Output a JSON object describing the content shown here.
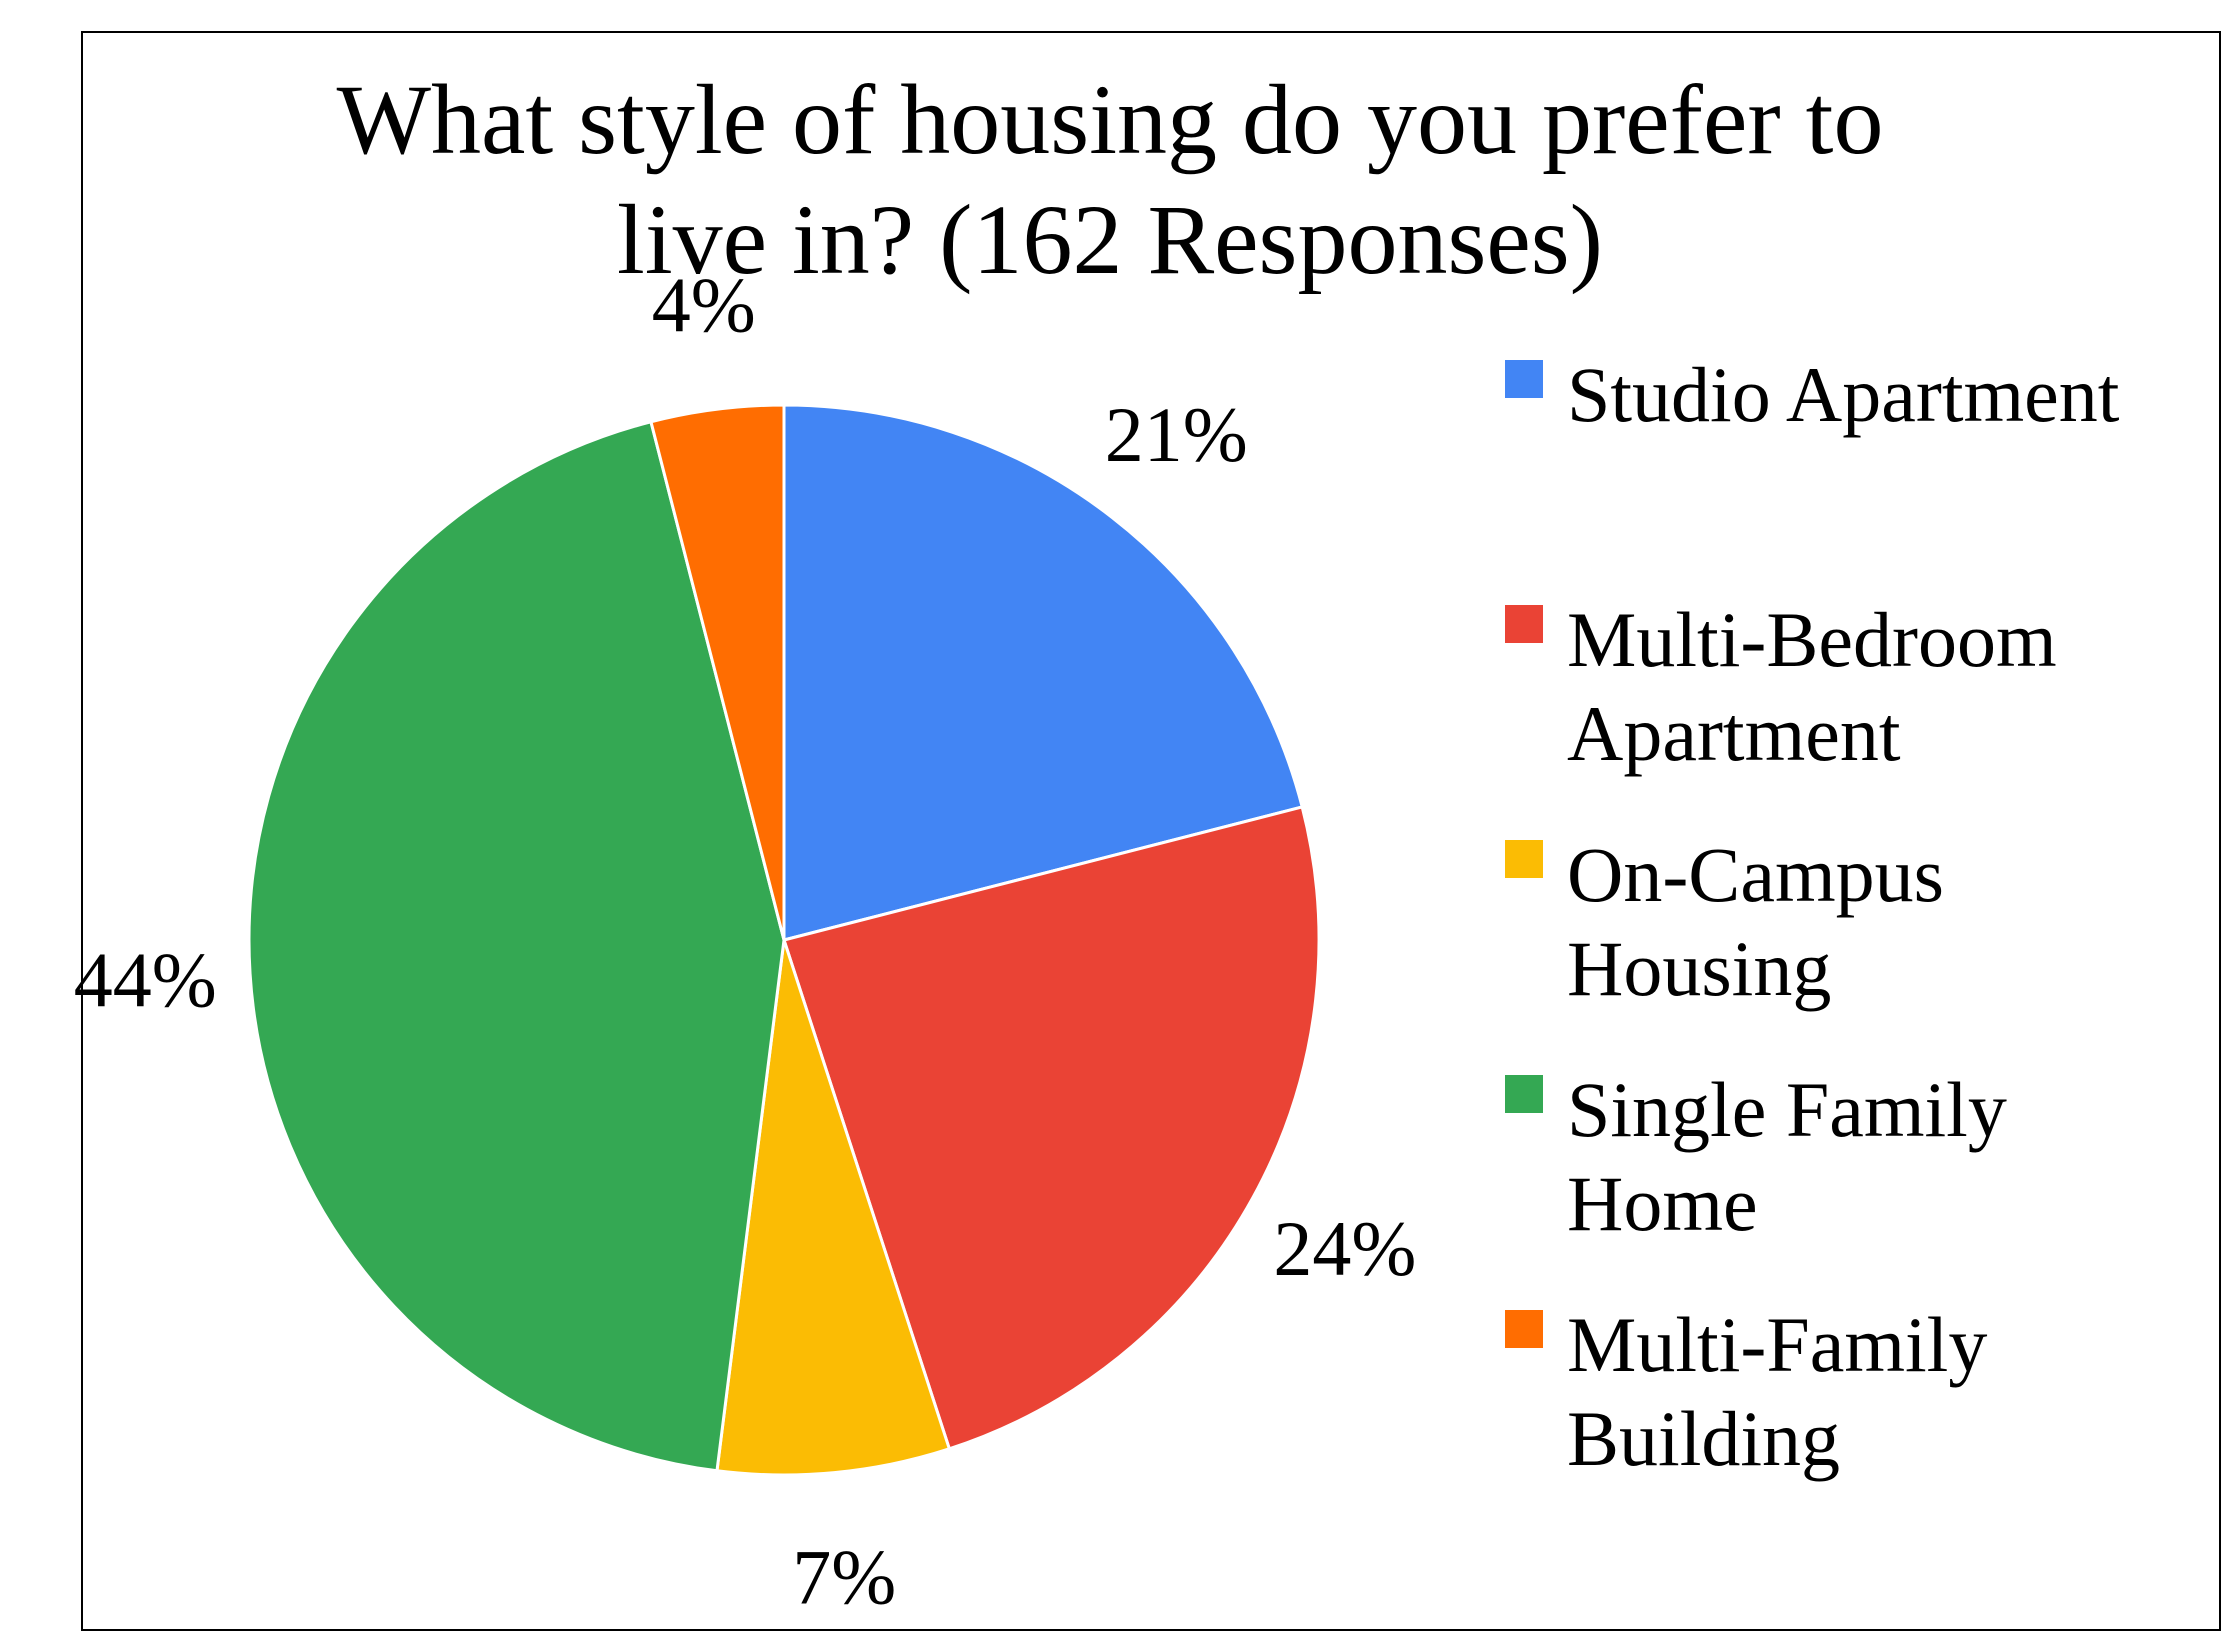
{
  "chart_data": {
    "type": "pie",
    "title_lines": [
      "What style of housing do you prefer to",
      "live in? (162 Responses)"
    ],
    "slices": [
      {
        "label": "Studio Apartment",
        "value": 21,
        "display": "21%",
        "color": "#4285f4"
      },
      {
        "label": "Multi-Bedroom Apartment",
        "value": 24,
        "display": "24%",
        "color": "#ea4335"
      },
      {
        "label": "On-Campus Housing",
        "value": 7,
        "display": "7%",
        "color": "#fbbc04"
      },
      {
        "label": "Single Family Home",
        "value": 44,
        "display": "44%",
        "color": "#34a853"
      },
      {
        "label": "Multi-Family Building",
        "value": 4,
        "display": "4%",
        "color": "#ff6d01"
      }
    ],
    "legend": {
      "position": "right",
      "entries": [
        {
          "lines": [
            "Studio Apartment"
          ],
          "color": "#4285f4"
        },
        {
          "lines": [
            "Multi-Bedroom",
            "Apartment"
          ],
          "color": "#ea4335"
        },
        {
          "lines": [
            "On-Campus",
            "Housing"
          ],
          "color": "#fbbc04"
        },
        {
          "lines": [
            "Single Family",
            "Home"
          ],
          "color": "#34a853"
        },
        {
          "lines": [
            "Multi-Family",
            "Building"
          ],
          "color": "#ff6d01"
        }
      ]
    }
  }
}
